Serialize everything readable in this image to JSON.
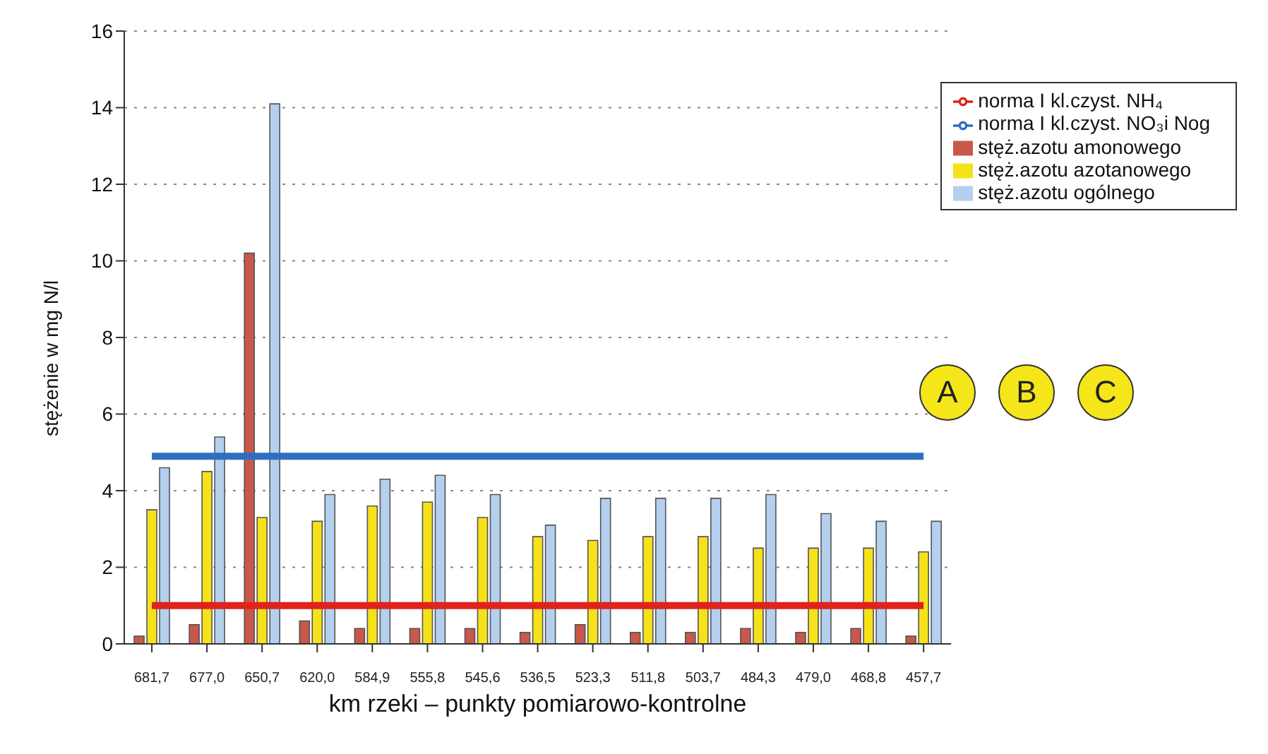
{
  "chart_data": {
    "type": "bar",
    "xlabel": "km rzeki – punkty pomiarowo-kontrolne",
    "ylabel": "stężenie w mg N/l",
    "categories": [
      "681,7",
      "677,0",
      "650,7",
      "620,0",
      "584,9",
      "555,8",
      "545,6",
      "536,5",
      "523,3",
      "511,8",
      "503,7",
      "484,3",
      "479,0",
      "468,8",
      "457,7"
    ],
    "series": [
      {
        "name": "stęż.azotu  amonowego",
        "color": "#c8584a",
        "values": [
          0.2,
          0.5,
          10.2,
          0.6,
          0.4,
          0.4,
          0.4,
          0.3,
          0.5,
          0.3,
          0.3,
          0.4,
          0.3,
          0.4,
          0.2
        ]
      },
      {
        "name": "stęż.azotu  azotanowego",
        "color": "#f5e21a",
        "values": [
          3.5,
          4.5,
          3.3,
          3.2,
          3.6,
          3.7,
          3.3,
          2.8,
          2.7,
          2.8,
          2.8,
          2.5,
          2.5,
          2.5,
          2.4
        ]
      },
      {
        "name": "stęż.azotu  ogólnego",
        "color": "#b4d0ee",
        "values": [
          4.6,
          5.4,
          14.1,
          3.9,
          4.3,
          4.4,
          3.9,
          3.1,
          3.8,
          3.8,
          3.8,
          3.9,
          3.4,
          3.2,
          3.2
        ]
      },
      {
        "name": "norma I kl.czyst.  NH₄",
        "color": "#e0231c",
        "type": "line",
        "values": [
          1,
          1,
          1,
          1,
          1,
          1,
          1,
          1,
          1,
          1,
          1,
          1,
          1,
          1,
          1
        ]
      },
      {
        "name": "norma I kl.czyst.  NO₃i Nog",
        "color": "#2f6fc0",
        "type": "line",
        "values": [
          4.9,
          4.9,
          4.9,
          4.9,
          4.9,
          4.9,
          4.9,
          4.9,
          4.9,
          4.9,
          4.9,
          4.9,
          4.9,
          4.9,
          4.9
        ]
      }
    ],
    "ylim": [
      0,
      16
    ],
    "yticks": [
      0,
      2,
      4,
      6,
      8,
      10,
      12,
      14,
      16
    ],
    "grid": "y",
    "legend": "top right",
    "annotations": [
      "A",
      "B",
      "C"
    ]
  }
}
